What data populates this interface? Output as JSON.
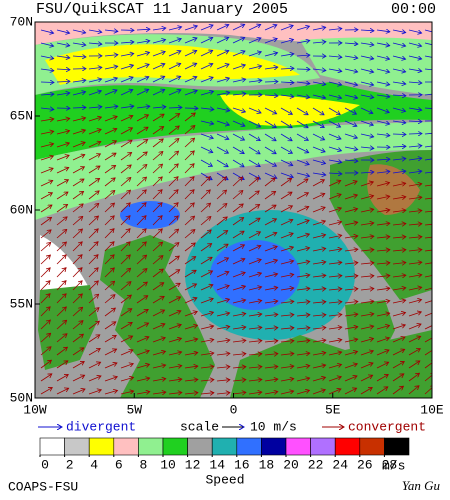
{
  "header": {
    "title": "FSU/QuikSCAT  11 January 2005",
    "time": "00:00"
  },
  "map": {
    "xlim": [
      -10,
      10
    ],
    "ylim": [
      50,
      70
    ],
    "xticks": [
      {
        "value": -10,
        "label": "10W"
      },
      {
        "value": -5,
        "label": "5W"
      },
      0,
      {
        "value": 5,
        "label": "5E"
      },
      {
        "value": 10,
        "label": "10E"
      }
    ],
    "yticks": [
      {
        "value": 50,
        "label": "50N"
      },
      {
        "value": 55,
        "label": "55N"
      },
      {
        "value": 60,
        "label": "60N"
      },
      {
        "value": 65,
        "label": "65N"
      },
      {
        "value": 70,
        "label": "70N"
      }
    ]
  },
  "legend": {
    "divergent": "divergent",
    "scale": "scale",
    "scale_value": "10 m/s",
    "convergent": "convergent"
  },
  "colorbar": {
    "ticks": [
      0,
      2,
      4,
      6,
      8,
      10,
      12,
      14,
      16,
      18,
      20,
      22,
      24,
      26,
      28
    ],
    "colors": [
      "#ffffff",
      "#c8c8c8",
      "#ffff00",
      "#ffc0c0",
      "#90f090",
      "#20d020",
      "#a0a0a0",
      "#20b0b0",
      "#3070ff",
      "#0000a0",
      "#ff50ff",
      "#b070ff",
      "#ff0000",
      "#c83000",
      "#000000"
    ],
    "unit": "m/s",
    "label": "Speed"
  },
  "footer": {
    "left": "COAPS-FSU",
    "right": "Yan Gu"
  }
}
